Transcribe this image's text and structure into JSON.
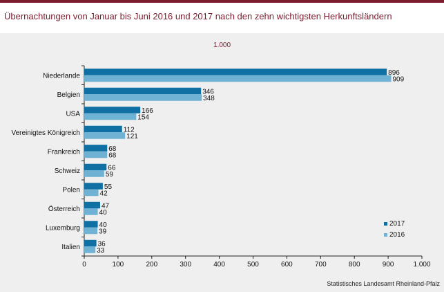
{
  "title": "Übernachtungen von Januar bis Juni 2016 und 2017 nach den zehn wichtigsten Herkunftsländern",
  "unit_label": "1.000",
  "source": "Statistisches Landesamt Rheinland-Pfalz",
  "colors": {
    "accent": "#7b1c2e",
    "series_2017": "#1170a3",
    "series_2016": "#6fb2d4",
    "panel": "#efefef"
  },
  "chart_data": {
    "type": "bar",
    "orientation": "horizontal",
    "title": "Übernachtungen von Januar bis Juni 2016 und 2017 nach den zehn wichtigsten Herkunftsländern",
    "unit": "1.000",
    "categories": [
      "Niederlande",
      "Belgien",
      "USA",
      "Vereinigtes Königreich",
      "Frankreich",
      "Schweiz",
      "Polen",
      "Österreich",
      "Luxemburg",
      "Italien"
    ],
    "series": [
      {
        "name": "2017",
        "color": "#1170a3",
        "values": [
          896,
          346,
          166,
          112,
          68,
          66,
          55,
          47,
          40,
          36
        ]
      },
      {
        "name": "2016",
        "color": "#6fb2d4",
        "values": [
          909,
          348,
          154,
          121,
          68,
          59,
          42,
          40,
          39,
          33
        ]
      }
    ],
    "xlim": [
      0,
      1000
    ],
    "xticks": [
      0,
      100,
      200,
      300,
      400,
      500,
      600,
      700,
      800,
      900,
      1000
    ],
    "xtick_labels": [
      "0",
      "100",
      "200",
      "300",
      "400",
      "500",
      "600",
      "700",
      "800",
      "900",
      "1.000"
    ],
    "grid": false,
    "legend_position": "bottom-right",
    "value_labels": true
  }
}
